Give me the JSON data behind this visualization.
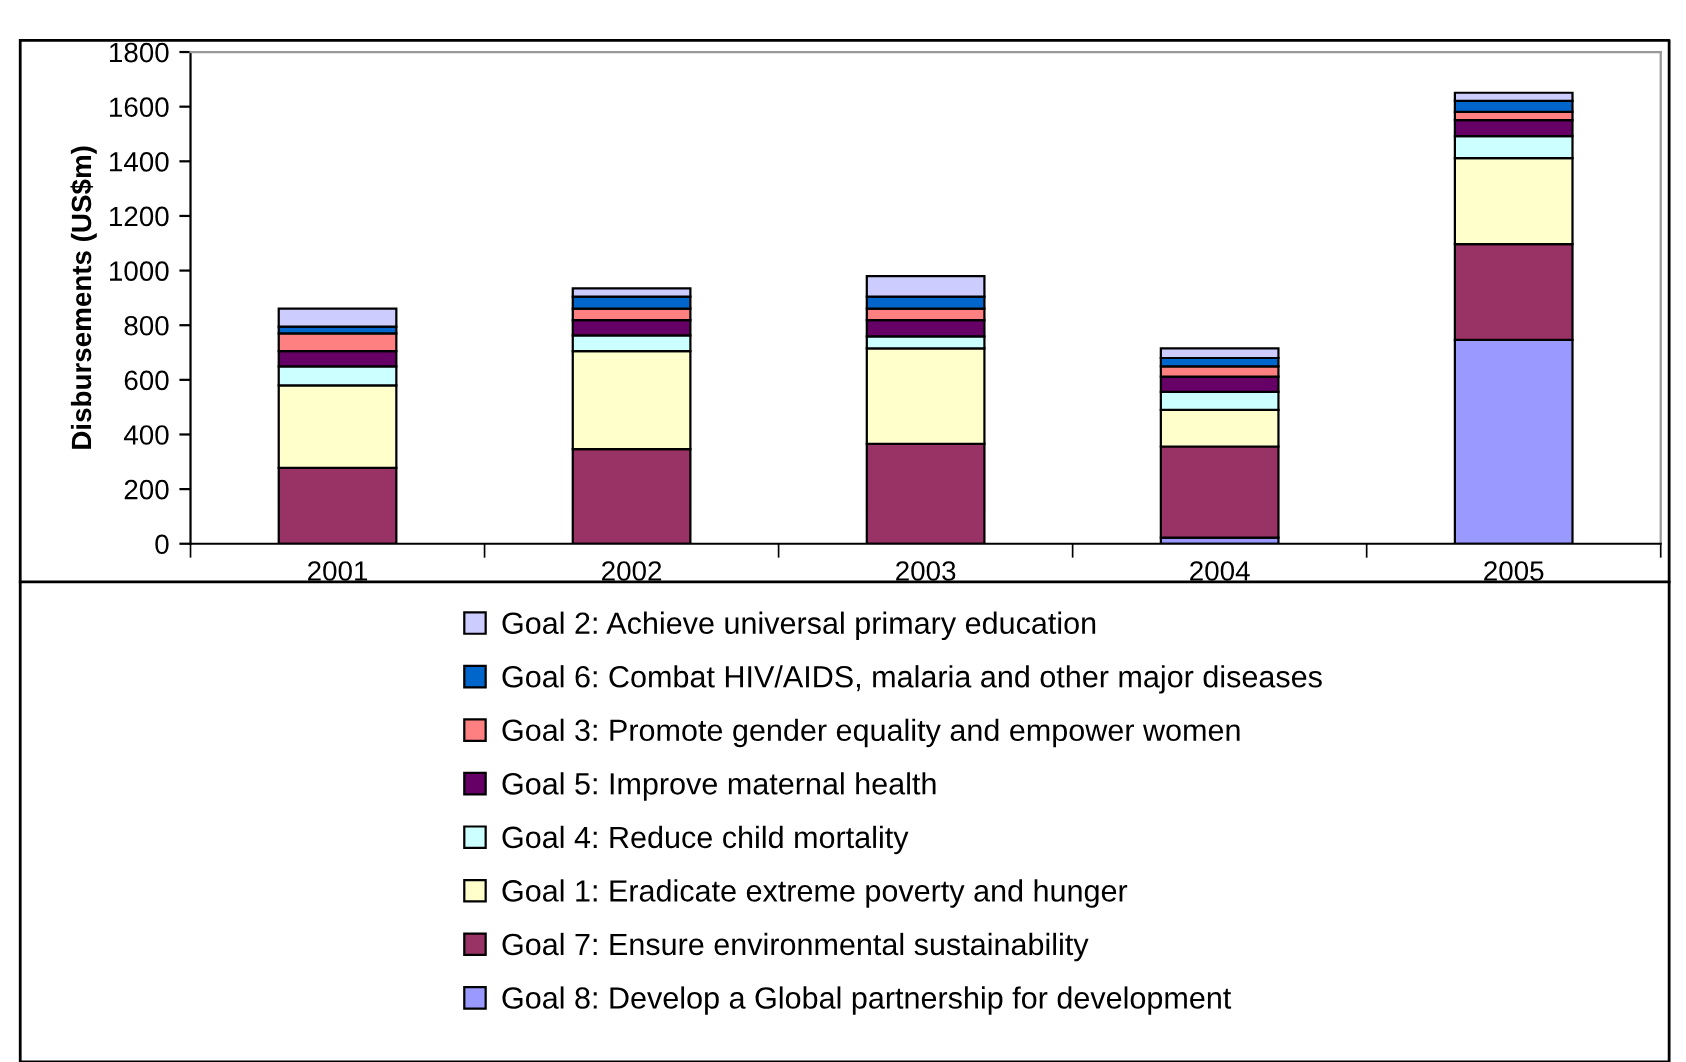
{
  "chart_data": {
    "type": "bar",
    "stacked": true,
    "ylabel": "Disbursements (US$m)",
    "categories": [
      "2001",
      "2002",
      "2003",
      "2004",
      "2005"
    ],
    "ylim": [
      0,
      1800
    ],
    "yticks": [
      0,
      200,
      400,
      600,
      800,
      1000,
      1200,
      1400,
      1600,
      1800
    ],
    "grid": false,
    "legend": "bottom",
    "series": [
      {
        "name": "Goal 8: Develop a Global partnership for development",
        "color": "#9999ff",
        "values": [
          0,
          0,
          0,
          22,
          746
        ]
      },
      {
        "name": "Goal 7: Ensure environmental sustainability",
        "color": "#993366",
        "values": [
          278,
          346,
          366,
          334,
          351
        ]
      },
      {
        "name": "Goal 1: Eradicate extreme poverty and hunger",
        "color": "#ffffcc",
        "values": [
          302,
          359,
          349,
          134,
          315
        ]
      },
      {
        "name": "Goal 4: Reduce child mortality",
        "color": "#ccffff",
        "values": [
          69,
          58,
          44,
          66,
          80
        ]
      },
      {
        "name": "Goal 5: Improve maternal health",
        "color": "#660066",
        "values": [
          56,
          56,
          60,
          56,
          59
        ]
      },
      {
        "name": "Goal 3: Promote gender equality and empower women",
        "color": "#ff8080",
        "values": [
          65,
          42,
          42,
          37,
          30
        ]
      },
      {
        "name": "Goal 6: Combat HIV/AIDS, malaria and other major diseases",
        "color": "#0066cc",
        "values": [
          25,
          44,
          44,
          31,
          40
        ]
      },
      {
        "name": "Goal 2: Achieve universal primary education",
        "color": "#ccccff",
        "values": [
          66,
          30,
          75,
          35,
          30
        ]
      }
    ]
  }
}
